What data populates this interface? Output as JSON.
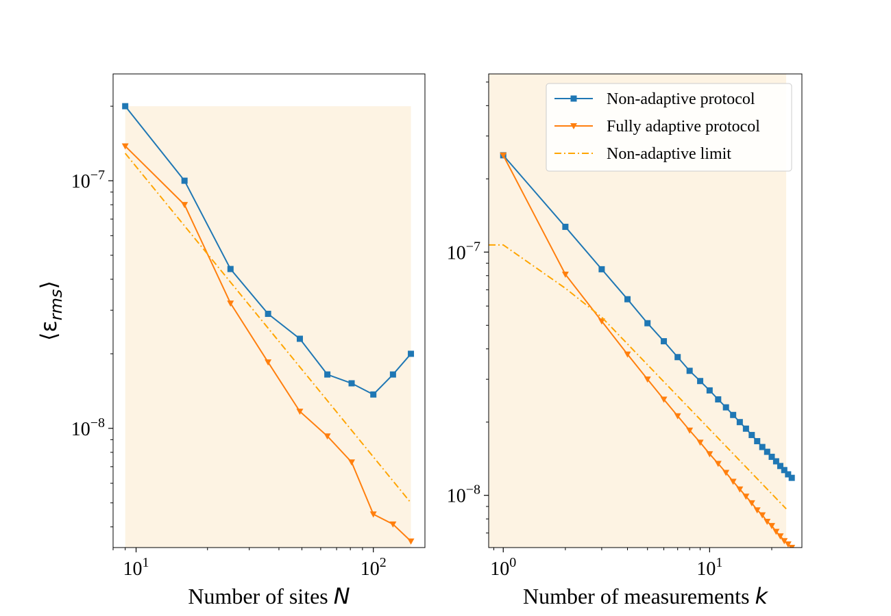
{
  "chart_data": [
    {
      "type": "line",
      "xscale": "log",
      "yscale": "log",
      "xlim": [
        8,
        165
      ],
      "ylim": [
        3.3e-09,
        2.7e-07
      ],
      "xlabel": "Number of sites ",
      "xlabel_var": "N",
      "ylabel": "⟨ε",
      "ylabel_sub": "rms",
      "ylabel_close": "⟩",
      "x_ticks": [
        {
          "value": 10,
          "base": "10",
          "exp": "1"
        },
        {
          "value": 100,
          "base": "10",
          "exp": "2"
        }
      ],
      "y_ticks": [
        {
          "value": 1e-08,
          "base": "10",
          "exp": "−8"
        },
        {
          "value": 1e-07,
          "base": "10",
          "exp": "−7"
        }
      ],
      "shade": {
        "x": [
          9,
          144
        ],
        "y_low": 3.3e-09,
        "y_high": 2e-07,
        "color": "#fdf3e3"
      },
      "series": [
        {
          "name": "Non-adaptive protocol",
          "color": "#1f77b4",
          "marker": "square",
          "style": "solid",
          "x": [
            9,
            16,
            25,
            36,
            49,
            64,
            81,
            100,
            121,
            144
          ],
          "y": [
            2e-07,
            1e-07,
            4.4e-08,
            2.9e-08,
            2.3e-08,
            1.65e-08,
            1.52e-08,
            1.37e-08,
            1.65e-08,
            2e-08
          ]
        },
        {
          "name": "Fully adaptive protocol",
          "color": "#ff7f0e",
          "marker": "triangle-down",
          "style": "solid",
          "x": [
            9,
            16,
            25,
            36,
            49,
            64,
            81,
            100,
            121,
            144
          ],
          "y": [
            1.38e-07,
            8e-08,
            3.2e-08,
            1.85e-08,
            1.17e-08,
            9.3e-09,
            7.3e-09,
            4.5e-09,
            4.1e-09,
            3.5e-09
          ]
        },
        {
          "name": "Non-adaptive limit",
          "color": "#ffa500",
          "marker": "none",
          "style": "dashdot",
          "x": [
            9,
            144
          ],
          "y": [
            1.29e-07,
            5e-09
          ]
        }
      ]
    },
    {
      "type": "line",
      "xscale": "log",
      "yscale": "log",
      "xlim": [
        0.85,
        28
      ],
      "ylim": [
        6.1e-09,
        5.4e-07
      ],
      "xlabel": "Number of measurements ",
      "xlabel_var": "k",
      "x_ticks": [
        {
          "value": 1,
          "base": "10",
          "exp": "0"
        },
        {
          "value": 10,
          "base": "10",
          "exp": "1"
        }
      ],
      "y_ticks": [
        {
          "value": 1e-08,
          "base": "10",
          "exp": "−8"
        },
        {
          "value": 1e-07,
          "base": "10",
          "exp": "−7"
        }
      ],
      "shade": {
        "x": [
          0.85,
          23.5
        ],
        "y_low": 6.1e-09,
        "y_high": 5.4e-07,
        "color": "#fdf3e3"
      },
      "series": [
        {
          "name": "Non-adaptive protocol",
          "color": "#1f77b4",
          "marker": "square",
          "style": "solid",
          "x": [
            1,
            2,
            3,
            4,
            5,
            6,
            7,
            8,
            9,
            10,
            11,
            12,
            13,
            14,
            15,
            16,
            17,
            18,
            19,
            20,
            21,
            22,
            23,
            24,
            25
          ],
          "y": [
            2.5e-07,
            1.27e-07,
            8.5e-08,
            6.4e-08,
            5.1e-08,
            4.3e-08,
            3.7e-08,
            3.25e-08,
            2.95e-08,
            2.7e-08,
            2.48e-08,
            2.3e-08,
            2.14e-08,
            2e-08,
            1.88e-08,
            1.77e-08,
            1.67e-08,
            1.58e-08,
            1.51e-08,
            1.44e-08,
            1.38e-08,
            1.32e-08,
            1.27e-08,
            1.22e-08,
            1.18e-08
          ]
        },
        {
          "name": "Fully adaptive protocol",
          "color": "#ff7f0e",
          "marker": "triangle-down",
          "style": "solid",
          "x": [
            1,
            2,
            3,
            4,
            5,
            6,
            7,
            8,
            9,
            10,
            11,
            12,
            13,
            14,
            15,
            16,
            17,
            18,
            19,
            20,
            21,
            22,
            23,
            24,
            25
          ],
          "y": [
            2.5e-07,
            8.1e-08,
            5.2e-08,
            3.8e-08,
            3e-08,
            2.48e-08,
            2.12e-08,
            1.85e-08,
            1.65e-08,
            1.48e-08,
            1.35e-08,
            1.24e-08,
            1.14e-08,
            1.06e-08,
            9.9e-09,
            9.3e-09,
            8.7e-09,
            8.3e-09,
            7.8e-09,
            7.5e-09,
            7.1e-09,
            6.8e-09,
            6.5e-09,
            6.3e-09,
            6.1e-09
          ]
        },
        {
          "name": "Non-adaptive limit",
          "color": "#ffa500",
          "marker": "none",
          "style": "dashdot",
          "x": [
            0.85,
            1,
            2,
            3,
            23.5
          ],
          "y": [
            1.07e-07,
            1.07e-07,
            7.1e-08,
            5.4e-08,
            8.8e-09
          ]
        }
      ],
      "legend": {
        "position": "top-right",
        "entries": [
          "Non-adaptive protocol",
          "Fully adaptive protocol",
          "Non-adaptive limit"
        ]
      }
    }
  ]
}
